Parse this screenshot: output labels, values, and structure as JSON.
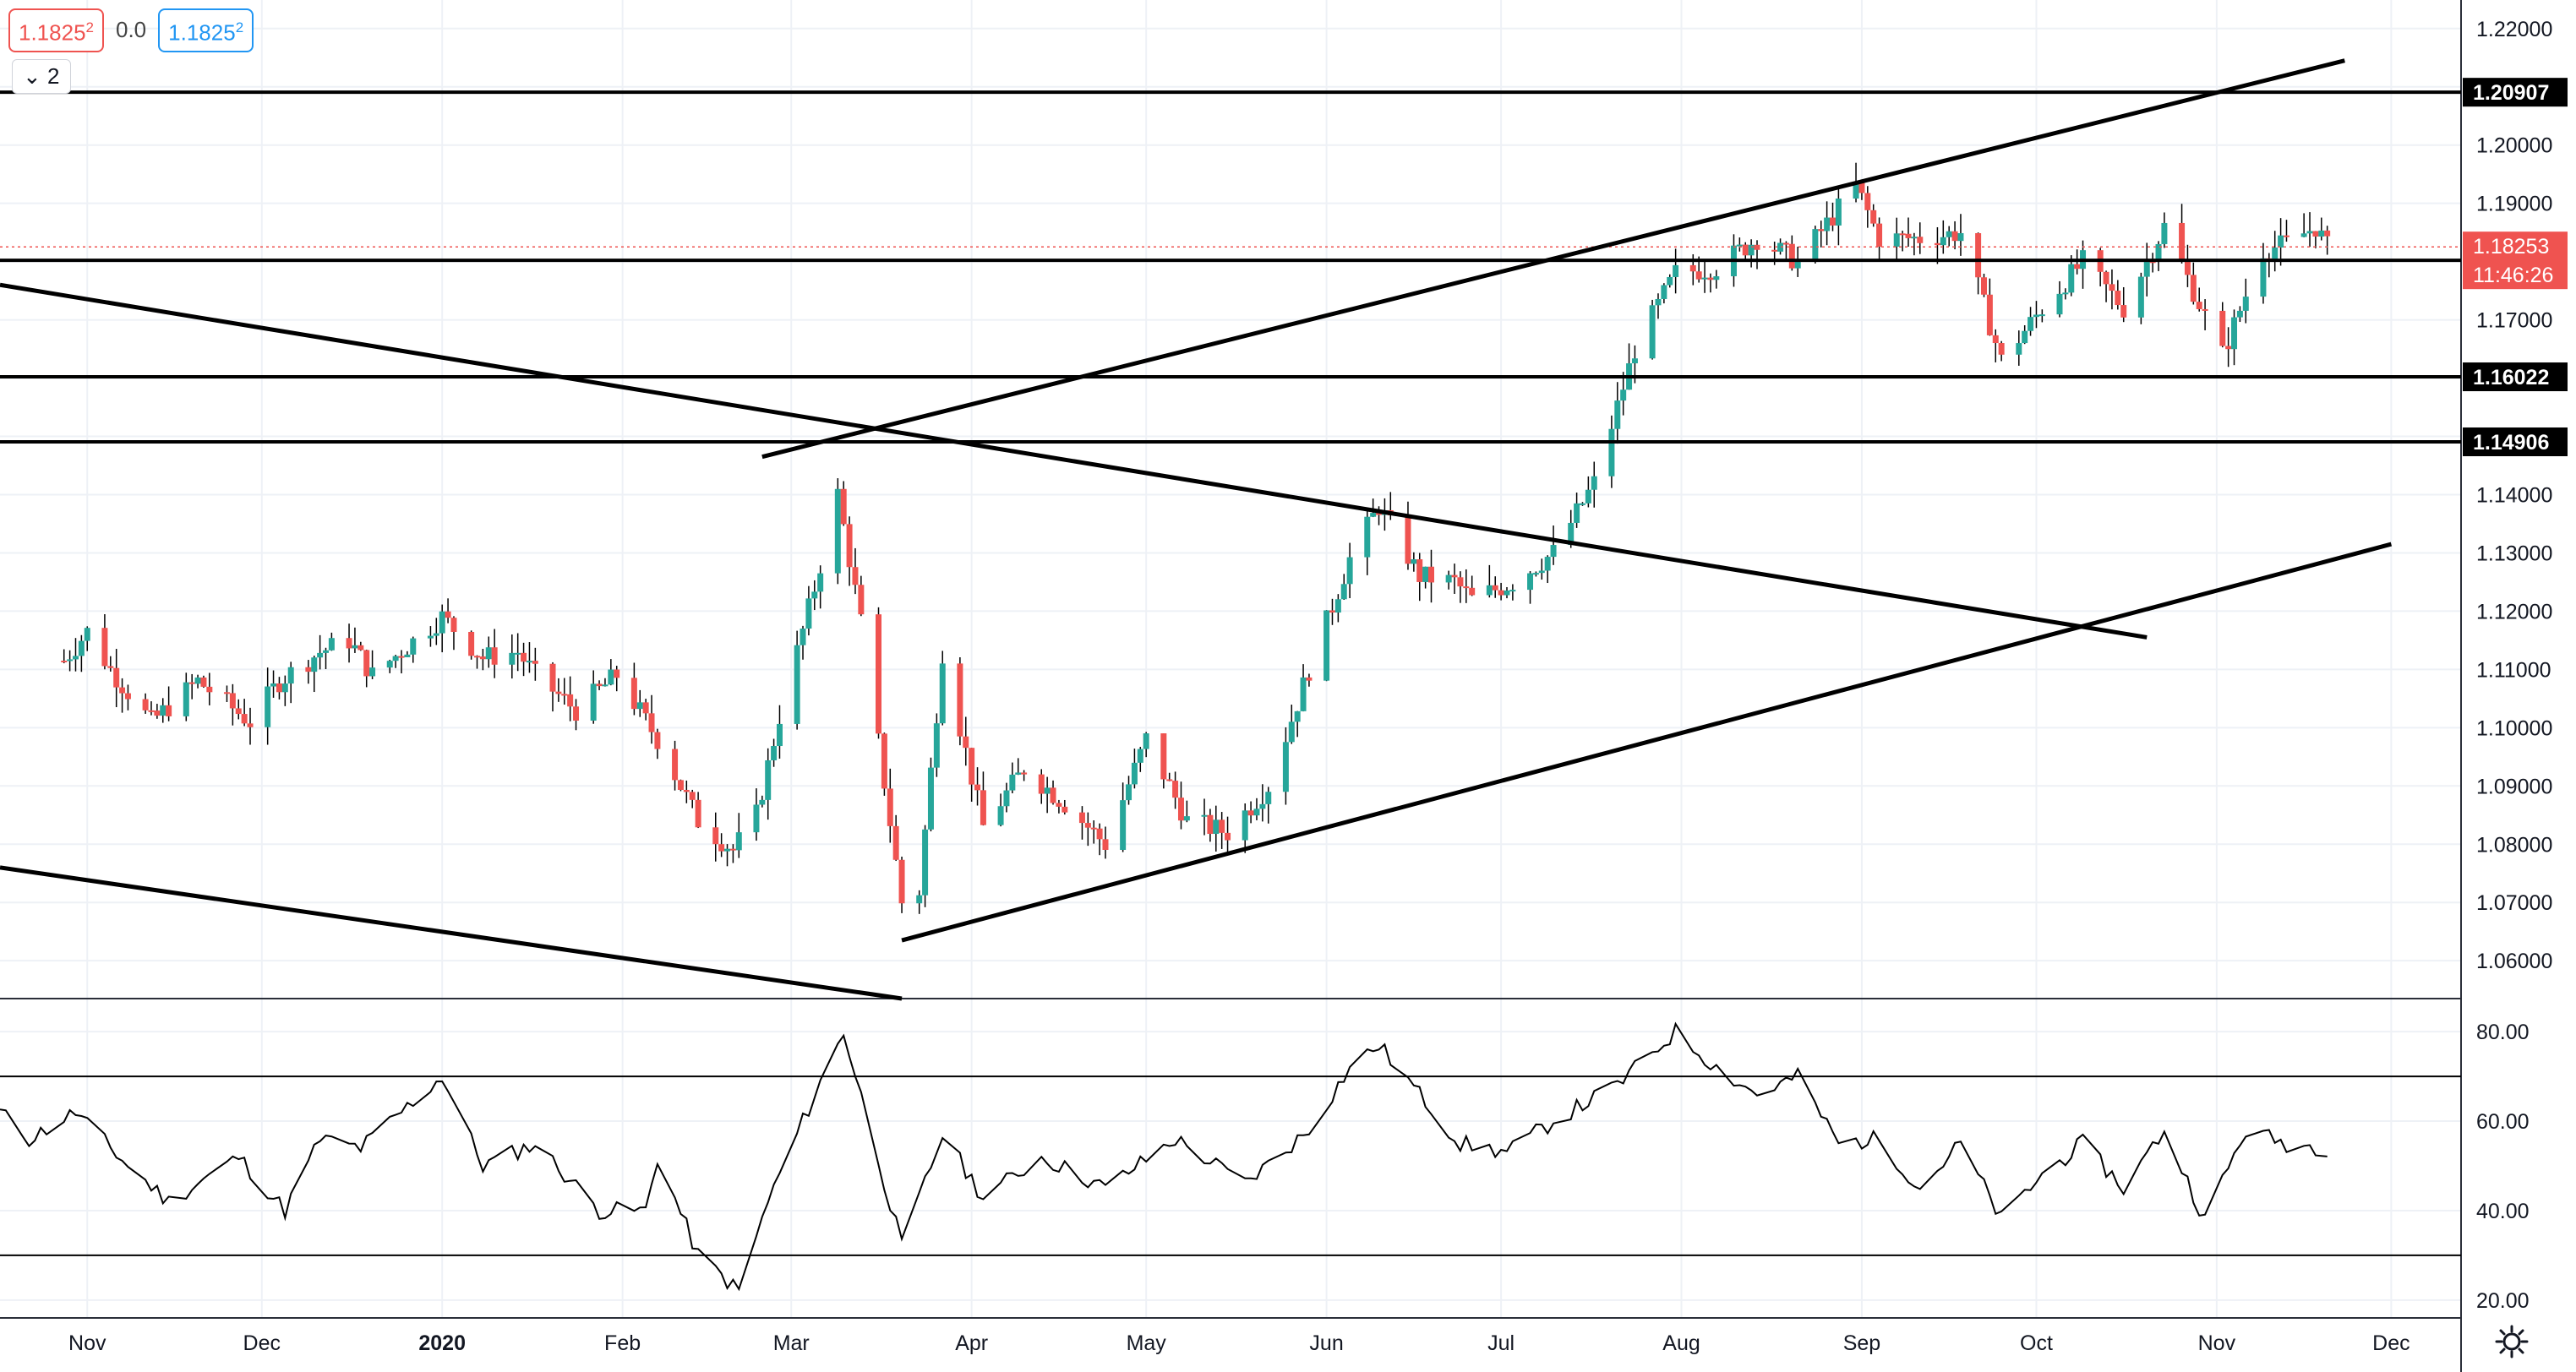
{
  "header": {
    "bid": "1.1825",
    "bid_sup": "2",
    "spread": "0.0",
    "ask": "1.1825",
    "ask_sup": "2",
    "indicator_count": "2"
  },
  "price_axis": {
    "ticks": [
      "1.22000",
      "1.21000",
      "1.20000",
      "1.19000",
      "1.18000",
      "1.17000",
      "1.16000",
      "1.15000",
      "1.14000",
      "1.13000",
      "1.12000",
      "1.11000",
      "1.10000",
      "1.09000",
      "1.08000",
      "1.07000",
      "1.06000"
    ],
    "levels": [
      {
        "label": "1.20907",
        "value": 1.20907
      },
      {
        "label": "1.18022",
        "value": 1.18022
      },
      {
        "label": "1.16022",
        "value": 1.16022
      },
      {
        "label": "1.14906",
        "value": 1.14906
      }
    ],
    "current_price": "1.18253",
    "countdown": "11:46:26"
  },
  "rsi_axis": {
    "ticks": [
      "80.00",
      "60.00",
      "40.00",
      "20.00"
    ],
    "upper_band": 70,
    "lower_band": 30
  },
  "time_axis": {
    "labels": [
      "Nov",
      "Dec",
      "2020",
      "Feb",
      "Mar",
      "Apr",
      "May",
      "Jun",
      "Jul",
      "Aug",
      "Sep",
      "Oct",
      "Nov",
      "Dec"
    ]
  },
  "colors": {
    "up": "#26a69a",
    "down": "#ef5350",
    "grid": "#eef1f6",
    "line": "#000000"
  },
  "chart_data": {
    "type": "candlestick",
    "symbol_scale": "EUR/USD daily",
    "ylim": [
      1.0535,
      1.2249
    ],
    "price_path": [
      [
        "2019-10-28",
        1.1115
      ],
      [
        "2019-11-01",
        1.1165
      ],
      [
        "2019-11-05",
        1.11
      ],
      [
        "2019-11-12",
        1.101
      ],
      [
        "2019-11-20",
        1.108
      ],
      [
        "2019-11-29",
        1.101
      ],
      [
        "2019-12-04",
        1.108
      ],
      [
        "2019-12-11",
        1.113
      ],
      [
        "2019-12-16",
        1.115
      ],
      [
        "2019-12-20",
        1.109
      ],
      [
        "2020-01-01",
        1.119
      ],
      [
        "2020-01-08",
        1.112
      ],
      [
        "2020-01-14",
        1.113
      ],
      [
        "2020-01-17",
        1.109
      ],
      [
        "2020-01-24",
        1.103
      ],
      [
        "2020-01-31",
        1.109
      ],
      [
        "2020-02-07",
        1.098
      ],
      [
        "2020-02-14",
        1.084
      ],
      [
        "2020-02-20",
        1.079
      ],
      [
        "2020-02-24",
        1.085
      ],
      [
        "2020-02-28",
        1.102
      ],
      [
        "2020-03-05",
        1.124
      ],
      [
        "2020-03-09",
        1.14
      ],
      [
        "2020-03-13",
        1.118
      ],
      [
        "2020-03-20",
        1.07
      ],
      [
        "2020-03-23",
        1.072
      ],
      [
        "2020-03-27",
        1.113
      ],
      [
        "2020-04-03",
        1.083
      ],
      [
        "2020-04-10",
        1.093
      ],
      [
        "2020-04-17",
        1.087
      ],
      [
        "2020-04-24",
        1.08
      ],
      [
        "2020-05-01",
        1.098
      ],
      [
        "2020-05-08",
        1.084
      ],
      [
        "2020-05-15",
        1.082
      ],
      [
        "2020-05-22",
        1.09
      ],
      [
        "2020-05-29",
        1.11
      ],
      [
        "2020-06-05",
        1.129
      ],
      [
        "2020-06-10",
        1.138
      ],
      [
        "2020-06-17",
        1.126
      ],
      [
        "2020-06-23",
        1.125
      ],
      [
        "2020-06-26",
        1.122
      ],
      [
        "2020-07-03",
        1.125
      ],
      [
        "2020-07-10",
        1.13
      ],
      [
        "2020-07-17",
        1.142
      ],
      [
        "2020-07-24",
        1.165
      ],
      [
        "2020-07-31",
        1.178
      ],
      [
        "2020-08-07",
        1.179
      ],
      [
        "2020-08-14",
        1.184
      ],
      [
        "2020-08-21",
        1.18
      ],
      [
        "2020-08-31",
        1.193
      ],
      [
        "2020-09-04",
        1.184
      ],
      [
        "2020-09-11",
        1.184
      ],
      [
        "2020-09-18",
        1.185
      ],
      [
        "2020-09-25",
        1.163
      ],
      [
        "2020-10-02",
        1.172
      ],
      [
        "2020-10-09",
        1.18
      ],
      [
        "2020-10-16",
        1.172
      ],
      [
        "2020-10-23",
        1.186
      ],
      [
        "2020-10-28",
        1.175
      ],
      [
        "2020-11-02",
        1.164
      ],
      [
        "2020-11-09",
        1.182
      ],
      [
        "2020-11-13",
        1.183
      ],
      [
        "2020-11-18",
        1.186
      ],
      [
        "2020-11-20",
        1.1825
      ]
    ],
    "trendlines": [
      {
        "name": "rising channel top",
        "from": [
          "2020-02-25",
          1.1465
        ],
        "to": [
          "2020-11-23",
          1.2145
        ]
      },
      {
        "name": "rising support",
        "from": [
          "2020-03-20",
          1.0635
        ],
        "to": [
          "2020-12-01",
          1.1315
        ]
      },
      {
        "name": "falling resistance",
        "from": [
          "2019-10-17",
          1.176
        ],
        "to": [
          "2020-10-20",
          1.1155
        ]
      },
      {
        "name": "falling lower line",
        "from": [
          "2019-10-17",
          1.076
        ],
        "to": [
          "2020-03-20",
          1.0535
        ]
      }
    ],
    "horizontal_levels": [
      1.20907,
      1.18022,
      1.16022,
      1.14906
    ],
    "last_price": 1.18253,
    "rsi": {
      "name": "RSI",
      "ylim": [
        16,
        84
      ],
      "bands": [
        70,
        30
      ],
      "path": [
        [
          "2019-10-17",
          62
        ],
        [
          "2019-10-22",
          56
        ],
        [
          "2019-10-30",
          62
        ],
        [
          "2019-11-08",
          50
        ],
        [
          "2019-11-15",
          42
        ],
        [
          "2019-11-27",
          52
        ],
        [
          "2019-12-05",
          40
        ],
        [
          "2019-12-11",
          56
        ],
        [
          "2019-12-18",
          54
        ],
        [
          "2020-01-01",
          70
        ],
        [
          "2020-01-08",
          50
        ],
        [
          "2020-01-17",
          55
        ],
        [
          "2020-01-28",
          40
        ],
        [
          "2020-02-05",
          40
        ],
        [
          "2020-02-07",
          52
        ],
        [
          "2020-02-14",
          30
        ],
        [
          "2020-02-21",
          22
        ],
        [
          "2020-02-26",
          42
        ],
        [
          "2020-03-03",
          60
        ],
        [
          "2020-03-10",
          80
        ],
        [
          "2020-03-20",
          32
        ],
        [
          "2020-03-27",
          57
        ],
        [
          "2020-04-03",
          43
        ],
        [
          "2020-04-13",
          52
        ],
        [
          "2020-04-24",
          45
        ],
        [
          "2020-05-06",
          56
        ],
        [
          "2020-05-18",
          46
        ],
        [
          "2020-05-29",
          58
        ],
        [
          "2020-06-05",
          72
        ],
        [
          "2020-06-10",
          77
        ],
        [
          "2020-06-24",
          55
        ],
        [
          "2020-07-02",
          53
        ],
        [
          "2020-07-10",
          60
        ],
        [
          "2020-07-21",
          68
        ],
        [
          "2020-07-31",
          80
        ],
        [
          "2020-08-07",
          72
        ],
        [
          "2020-08-14",
          66
        ],
        [
          "2020-08-21",
          70
        ],
        [
          "2020-08-28",
          55
        ],
        [
          "2020-09-04",
          56
        ],
        [
          "2020-09-11",
          45
        ],
        [
          "2020-09-18",
          55
        ],
        [
          "2020-09-25",
          38
        ],
        [
          "2020-10-02",
          48
        ],
        [
          "2020-10-09",
          55
        ],
        [
          "2020-10-16",
          45
        ],
        [
          "2020-10-23",
          58
        ],
        [
          "2020-10-30",
          38
        ],
        [
          "2020-11-06",
          58
        ],
        [
          "2020-11-13",
          55
        ],
        [
          "2020-11-20",
          54
        ]
      ]
    }
  }
}
